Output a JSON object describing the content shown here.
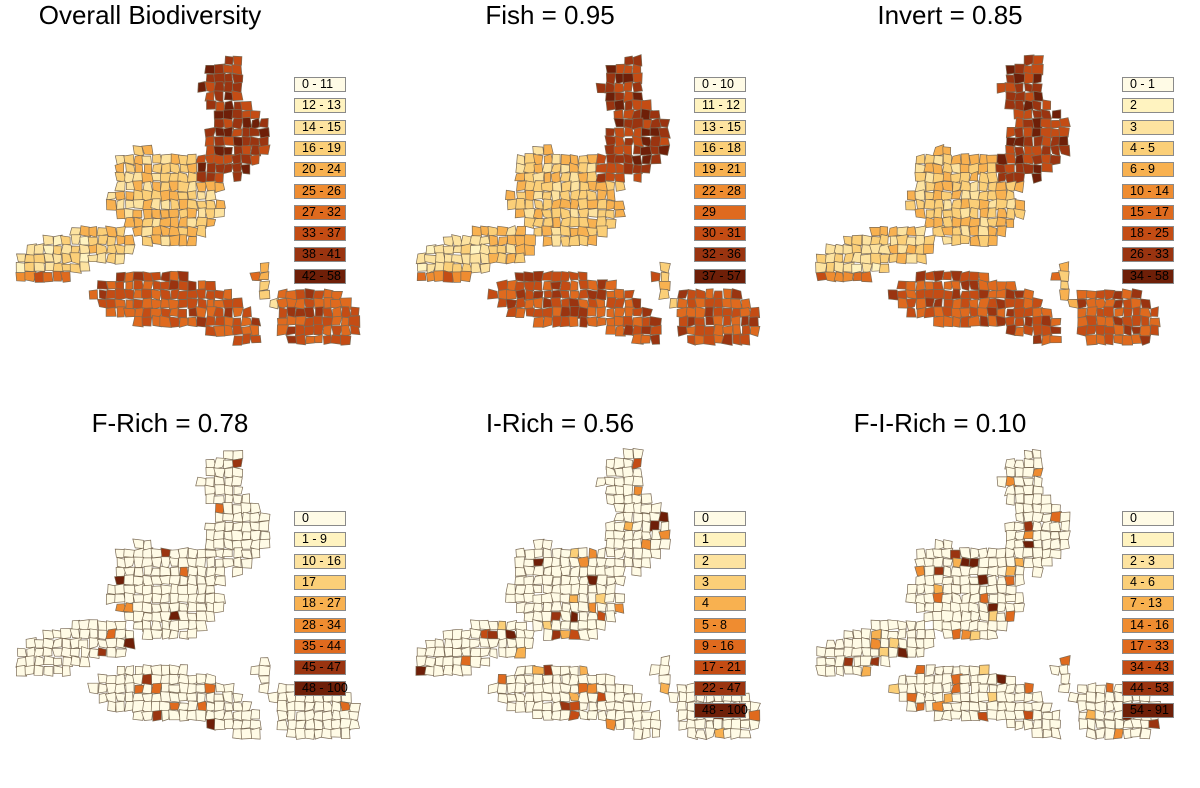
{
  "figure": {
    "panels": [
      {
        "id": "overall",
        "title": "Overall Biodiversity",
        "legend": [
          {
            "label": "0 - 11",
            "color": "#fffbe6"
          },
          {
            "label": "12 - 13",
            "color": "#fff3c0"
          },
          {
            "label": "14 - 15",
            "color": "#fde3a0"
          },
          {
            "label": "16 - 19",
            "color": "#fbcf78"
          },
          {
            "label": "20 - 24",
            "color": "#f8b150"
          },
          {
            "label": "25 - 26",
            "color": "#ef8c30"
          },
          {
            "label": "27 - 32",
            "color": "#df6a1e"
          },
          {
            "label": "33 - 37",
            "color": "#c44c14"
          },
          {
            "label": "38 - 41",
            "color": "#9a3410"
          },
          {
            "label": "42 - 58",
            "color": "#6e1f08"
          }
        ],
        "shading": "high"
      },
      {
        "id": "fish",
        "title": "Fish = 0.95",
        "legend": [
          {
            "label": "0 - 10",
            "color": "#fffbe6"
          },
          {
            "label": "11 - 12",
            "color": "#fff3c0"
          },
          {
            "label": "13 - 15",
            "color": "#fde3a0"
          },
          {
            "label": "16 - 18",
            "color": "#fbcf78"
          },
          {
            "label": "19 - 21",
            "color": "#f8b150"
          },
          {
            "label": "22 - 28",
            "color": "#ef8c30"
          },
          {
            "label": "29",
            "color": "#df6a1e"
          },
          {
            "label": "30 - 31",
            "color": "#c44c14"
          },
          {
            "label": "32 - 36",
            "color": "#9a3410"
          },
          {
            "label": "37 - 57",
            "color": "#6e1f08"
          }
        ],
        "shading": "high"
      },
      {
        "id": "invert",
        "title": "Invert = 0.85",
        "legend": [
          {
            "label": "0 - 1",
            "color": "#fffbe6"
          },
          {
            "label": "2",
            "color": "#fff3c0"
          },
          {
            "label": "3",
            "color": "#fde3a0"
          },
          {
            "label": "4 - 5",
            "color": "#fbcf78"
          },
          {
            "label": "6 - 9",
            "color": "#f8b150"
          },
          {
            "label": "10 - 14",
            "color": "#ef8c30"
          },
          {
            "label": "15 - 17",
            "color": "#df6a1e"
          },
          {
            "label": "18 - 25",
            "color": "#c44c14"
          },
          {
            "label": "26 - 33",
            "color": "#9a3410"
          },
          {
            "label": "34 - 58",
            "color": "#6e1f08"
          }
        ],
        "shading": "high"
      },
      {
        "id": "f-rich",
        "title": "F-Rich = 0.78",
        "legend": [
          {
            "label": "0",
            "color": "#fffbe6"
          },
          {
            "label": "1 - 9",
            "color": "#fff3c0"
          },
          {
            "label": "10 - 16",
            "color": "#fde3a0"
          },
          {
            "label": "17",
            "color": "#fbcf78"
          },
          {
            "label": "18 - 27",
            "color": "#f8b150"
          },
          {
            "label": "28 - 34",
            "color": "#ef8c30"
          },
          {
            "label": "35 - 44",
            "color": "#df6a1e"
          },
          {
            "label": "45 - 47",
            "color": "#9a3410"
          },
          {
            "label": "48 - 100",
            "color": "#6e1f08"
          }
        ],
        "shading": "sparse"
      },
      {
        "id": "i-rich",
        "title": "I-Rich = 0.56",
        "legend": [
          {
            "label": "0",
            "color": "#fffbe6"
          },
          {
            "label": "1",
            "color": "#fff3c0"
          },
          {
            "label": "2",
            "color": "#fde3a0"
          },
          {
            "label": "3",
            "color": "#fbcf78"
          },
          {
            "label": "4",
            "color": "#f8b150"
          },
          {
            "label": "5 - 8",
            "color": "#ef8c30"
          },
          {
            "label": "9 - 16",
            "color": "#df6a1e"
          },
          {
            "label": "17 - 21",
            "color": "#c44c14"
          },
          {
            "label": "22 - 47",
            "color": "#9a3410"
          },
          {
            "label": "48 - 100",
            "color": "#6e1f08"
          }
        ],
        "shading": "medium"
      },
      {
        "id": "f-i-rich",
        "title": "F-I-Rich = 0.10",
        "legend": [
          {
            "label": "0",
            "color": "#fffbe6"
          },
          {
            "label": "1",
            "color": "#fff3c0"
          },
          {
            "label": "2 - 3",
            "color": "#fde3a0"
          },
          {
            "label": "4 - 6",
            "color": "#fbcf78"
          },
          {
            "label": "7 - 13",
            "color": "#f8b150"
          },
          {
            "label": "14 - 16",
            "color": "#ef8c30"
          },
          {
            "label": "17 - 33",
            "color": "#df6a1e"
          },
          {
            "label": "34 - 43",
            "color": "#c44c14"
          },
          {
            "label": "44 - 53",
            "color": "#9a3410"
          },
          {
            "label": "54 - 91",
            "color": "#6e1f08"
          }
        ],
        "shading": "medium"
      }
    ]
  }
}
